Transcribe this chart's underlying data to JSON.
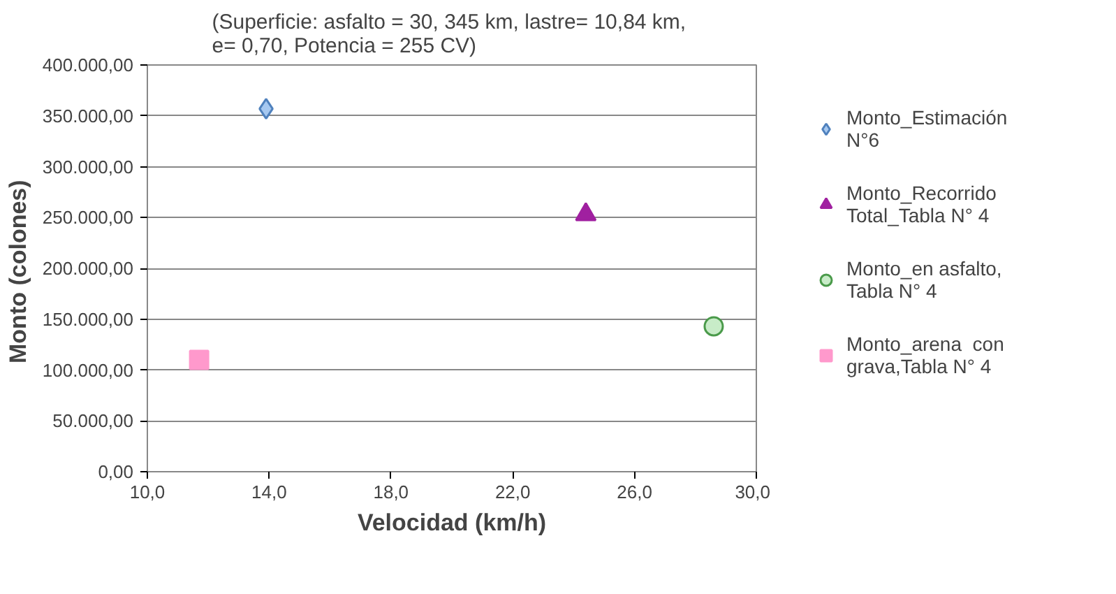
{
  "chart_data": {
    "type": "scatter",
    "title": "(Superficie: asfalto = 30, 345 km,  lastre= 10,84 km,\ne= 0,70,  Potencia = 255 CV)",
    "xlabel": "Velocidad (km/h)",
    "ylabel": "Monto  (colones)",
    "xlim": [
      10,
      30
    ],
    "ylim": [
      0,
      400000
    ],
    "xticks": [
      {
        "value": 10,
        "label": "10,0"
      },
      {
        "value": 14,
        "label": "14,0"
      },
      {
        "value": 18,
        "label": "18,0"
      },
      {
        "value": 22,
        "label": "22,0"
      },
      {
        "value": 26,
        "label": "26,0"
      },
      {
        "value": 30,
        "label": "30,0"
      }
    ],
    "yticks": [
      {
        "value": 0,
        "label": "0,00"
      },
      {
        "value": 50000,
        "label": "50.000,00"
      },
      {
        "value": 100000,
        "label": "100.000,00"
      },
      {
        "value": 150000,
        "label": "150.000,00"
      },
      {
        "value": 200000,
        "label": "200.000,00"
      },
      {
        "value": 250000,
        "label": "250.000,00"
      },
      {
        "value": 300000,
        "label": "300.000,00"
      },
      {
        "value": 350000,
        "label": "350.000,00"
      },
      {
        "value": 400000,
        "label": "400.000,00"
      }
    ],
    "grid": "y",
    "legend": "right",
    "series": [
      {
        "name": "Monto_Estimación\nN°6",
        "color": "#4f81bd",
        "marker": "diamond",
        "x": [
          13.9
        ],
        "values": [
          357000
        ]
      },
      {
        "name": "Monto_Recorrido\nTotal_Tabla N° 4",
        "color": "#a020a0",
        "marker": "triangle",
        "x": [
          24.4
        ],
        "values": [
          253000
        ]
      },
      {
        "name": "Monto_en asfalto,\nTabla N° 4",
        "color": "#4a9a4a",
        "marker": "circle",
        "x": [
          28.6
        ],
        "values": [
          143000
        ]
      },
      {
        "name": "Monto_arena  con\ngrava,Tabla N° 4",
        "color": "#ff99cc",
        "marker": "square",
        "x": [
          11.7
        ],
        "values": [
          110000
        ]
      }
    ]
  }
}
